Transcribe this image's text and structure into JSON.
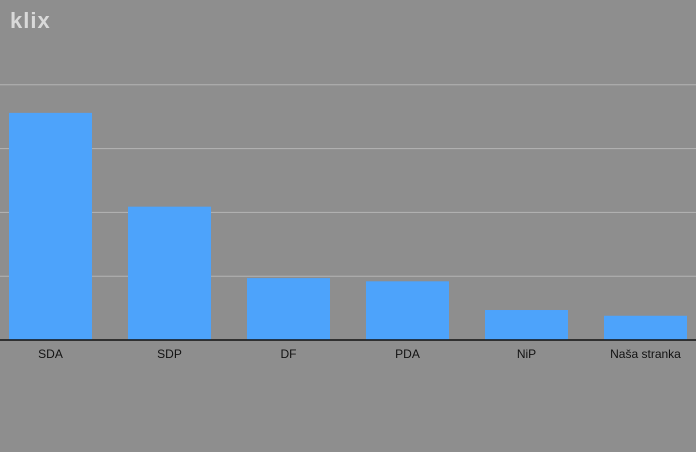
{
  "logo": "klix",
  "chart_data": {
    "type": "bar",
    "categories": [
      "SDA",
      "SDP",
      "DF",
      "PDA",
      "NiP",
      "Naša stranka"
    ],
    "values": [
      3.56,
      2.09,
      0.97,
      0.92,
      0.47,
      0.38
    ],
    "color": "#4da3fb",
    "ylim": [
      0,
      5
    ],
    "yticks": [
      1,
      2,
      3,
      4
    ],
    "grid": true
  }
}
